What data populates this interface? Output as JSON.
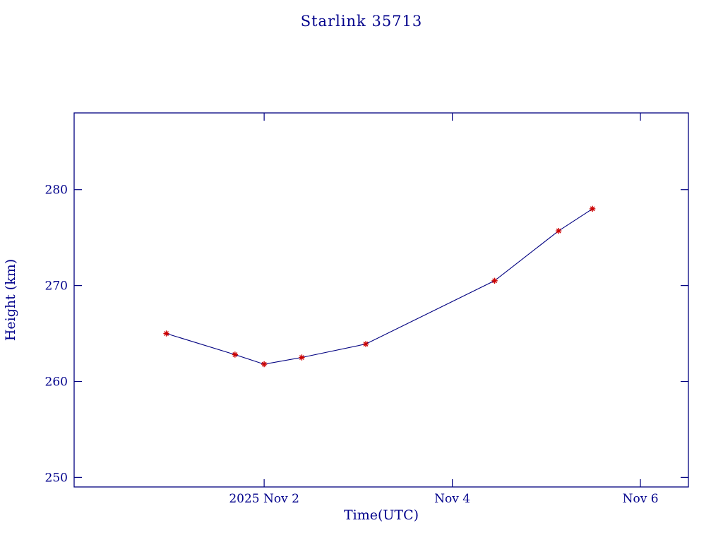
{
  "page": {
    "background": "#ffffff"
  },
  "chart_data": {
    "type": "line",
    "title": "Starlink 35713",
    "xlabel": "Time(UTC)",
    "ylabel": "Height (km)",
    "x_units": "day of November 2025 (UTC)",
    "x": [
      0.96,
      1.69,
      2.0,
      2.4,
      3.08,
      4.45,
      5.13,
      5.49
    ],
    "y": [
      265.0,
      262.8,
      261.8,
      262.5,
      263.9,
      270.5,
      275.7,
      278.0
    ],
    "xlim": [
      -0.02,
      6.51
    ],
    "ylim": [
      249,
      288
    ],
    "xticks": [
      {
        "value": 2,
        "label": "2025 Nov 2"
      },
      {
        "value": 4,
        "label": "Nov 4"
      },
      {
        "value": 6,
        "label": "Nov 6"
      }
    ],
    "yticks": [
      {
        "value": 250,
        "label": "250"
      },
      {
        "value": 260,
        "label": "260"
      },
      {
        "value": 270,
        "label": "270"
      },
      {
        "value": 280,
        "label": "280"
      }
    ],
    "grid": false,
    "legend": null,
    "marker": "asterisk",
    "line_color": "#000080",
    "marker_color": "#cc0000",
    "axis_color": "#000080",
    "text_color": "#00008b"
  }
}
